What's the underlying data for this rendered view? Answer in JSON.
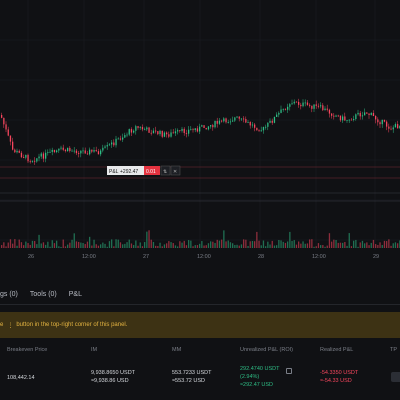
{
  "chart": {
    "x_labels": [
      "26",
      "12:00",
      "27",
      "12:00",
      "28",
      "12:00",
      "29",
      "12:"
    ],
    "pnl_label": "P&L",
    "pnl_value": "+292.47",
    "pnl_qty": "0.01",
    "colors": {
      "up": "#2ebd85",
      "down": "#f6465d",
      "background": "#101114",
      "grid": "#1b1d22"
    }
  },
  "tabs": [
    "gs (0)",
    "Tools (0)",
    "P&L"
  ],
  "notice": {
    "text": "e",
    "text2": "button in the top-right corner of this panel."
  },
  "columns": [
    "Breakeven Price",
    "IM",
    "MM",
    "Unrealized P&L (ROI)",
    "Realized P&L",
    "TP"
  ],
  "position": {
    "breakeven": "108,442.14",
    "im_1": "9,938.8650 USDT",
    "im_2": "≈9,938.86 USD",
    "mm_1": "553.7233 USDT",
    "mm_2": "≈553.72 USD",
    "upnl_1": "292.4740 USDT",
    "upnl_2": "(2.94%)",
    "upnl_3": "≈292.47 USD",
    "rpnl_1": "-54.3350 USDT",
    "rpnl_2": "≈-54.33 USD"
  }
}
